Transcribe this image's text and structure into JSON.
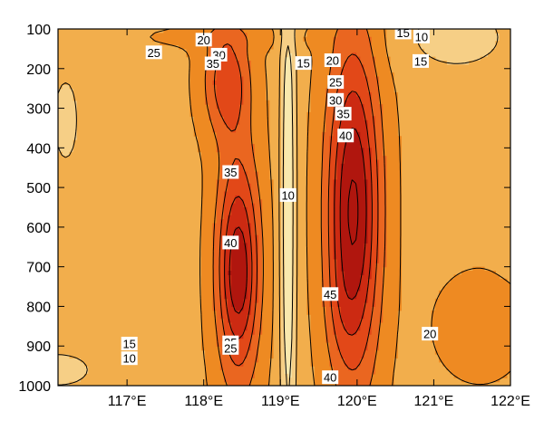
{
  "chart_data": {
    "type": "heatmap",
    "subtype": "filled-contour",
    "x_ticks": [
      "117°E",
      "118°E",
      "119°E",
      "120°E",
      "121°E",
      "122°E"
    ],
    "x_tick_values": [
      117,
      118,
      119,
      120,
      121,
      122
    ],
    "xlim": [
      116.1,
      122.0
    ],
    "y_ticks": [
      "100",
      "200",
      "300",
      "400",
      "500",
      "600",
      "700",
      "800",
      "900",
      "1000"
    ],
    "y_tick_values": [
      100,
      200,
      300,
      400,
      500,
      600,
      700,
      800,
      900,
      1000
    ],
    "ylim": [
      1000,
      100
    ],
    "contour_levels": [
      5,
      10,
      15,
      20,
      25,
      30,
      35,
      40,
      45
    ],
    "fill_colors": [
      "#FBF3BE",
      "#F9E9AE",
      "#F6CF86",
      "#F2AE4C",
      "#EE8A22",
      "#EA6620",
      "#E24818",
      "#CC2A12",
      "#B0160E"
    ],
    "contour_labels": [
      {
        "text": "20",
        "lon": 118.0,
        "p": 128
      },
      {
        "text": "25",
        "lon": 117.35,
        "p": 160
      },
      {
        "text": "30",
        "lon": 118.2,
        "p": 166
      },
      {
        "text": "35",
        "lon": 118.12,
        "p": 188
      },
      {
        "text": "15",
        "lon": 119.3,
        "p": 187
      },
      {
        "text": "20",
        "lon": 119.68,
        "p": 180
      },
      {
        "text": "25",
        "lon": 119.72,
        "p": 235
      },
      {
        "text": "30",
        "lon": 119.72,
        "p": 280
      },
      {
        "text": "35",
        "lon": 119.82,
        "p": 315
      },
      {
        "text": "40",
        "lon": 119.85,
        "p": 370
      },
      {
        "text": "15",
        "lon": 120.6,
        "p": 110
      },
      {
        "text": "10",
        "lon": 120.84,
        "p": 120
      },
      {
        "text": "15",
        "lon": 120.83,
        "p": 182
      },
      {
        "text": "35",
        "lon": 118.35,
        "p": 462
      },
      {
        "text": "10",
        "lon": 119.1,
        "p": 520
      },
      {
        "text": "40",
        "lon": 118.35,
        "p": 640
      },
      {
        "text": "45",
        "lon": 119.65,
        "p": 770
      },
      {
        "text": "20",
        "lon": 120.95,
        "p": 870
      },
      {
        "text": "15",
        "lon": 117.03,
        "p": 895
      },
      {
        "text": "10",
        "lon": 117.03,
        "p": 932
      },
      {
        "text": "35",
        "lon": 118.35,
        "p": 892
      },
      {
        "text": "25",
        "lon": 118.35,
        "p": 906
      },
      {
        "text": "40",
        "lon": 119.65,
        "p": 980
      }
    ],
    "grid": false,
    "legend": "none",
    "title": "",
    "xlabel": "",
    "ylabel": ""
  }
}
